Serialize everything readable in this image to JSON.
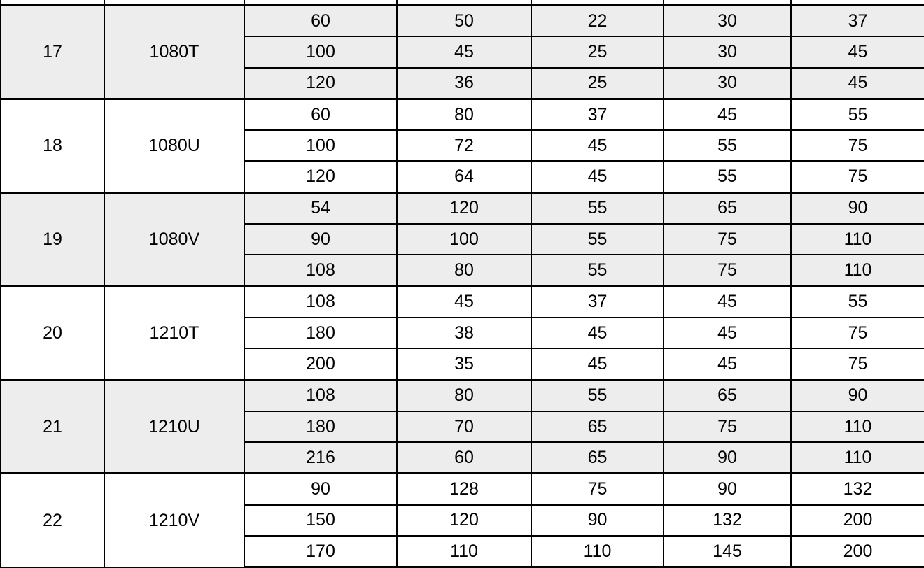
{
  "colors": {
    "shaded_row_bg": "#ededed",
    "row_bg": "#ffffff",
    "border": "#000000",
    "text": "#000000"
  },
  "table": {
    "groups": [
      {
        "no": "17",
        "model": "1080T",
        "shaded": true,
        "rows": [
          [
            "60",
            "50",
            "22",
            "30",
            "37"
          ],
          [
            "100",
            "45",
            "25",
            "30",
            "45"
          ],
          [
            "120",
            "36",
            "25",
            "30",
            "45"
          ]
        ]
      },
      {
        "no": "18",
        "model": "1080U",
        "shaded": false,
        "rows": [
          [
            "60",
            "80",
            "37",
            "45",
            "55"
          ],
          [
            "100",
            "72",
            "45",
            "55",
            "75"
          ],
          [
            "120",
            "64",
            "45",
            "55",
            "75"
          ]
        ]
      },
      {
        "no": "19",
        "model": "1080V",
        "shaded": true,
        "rows": [
          [
            "54",
            "120",
            "55",
            "65",
            "90"
          ],
          [
            "90",
            "100",
            "55",
            "75",
            "110"
          ],
          [
            "108",
            "80",
            "55",
            "75",
            "110"
          ]
        ]
      },
      {
        "no": "20",
        "model": "1210T",
        "shaded": false,
        "rows": [
          [
            "108",
            "45",
            "37",
            "45",
            "55"
          ],
          [
            "180",
            "38",
            "45",
            "45",
            "75"
          ],
          [
            "200",
            "35",
            "45",
            "45",
            "75"
          ]
        ]
      },
      {
        "no": "21",
        "model": "1210U",
        "shaded": true,
        "rows": [
          [
            "108",
            "80",
            "55",
            "65",
            "90"
          ],
          [
            "180",
            "70",
            "65",
            "75",
            "110"
          ],
          [
            "216",
            "60",
            "65",
            "90",
            "110"
          ]
        ]
      },
      {
        "no": "22",
        "model": "1210V",
        "shaded": false,
        "rows": [
          [
            "90",
            "128",
            "75",
            "90",
            "132"
          ],
          [
            "150",
            "120",
            "90",
            "132",
            "200"
          ],
          [
            "170",
            "110",
            "110",
            "145",
            "200"
          ]
        ]
      }
    ]
  }
}
